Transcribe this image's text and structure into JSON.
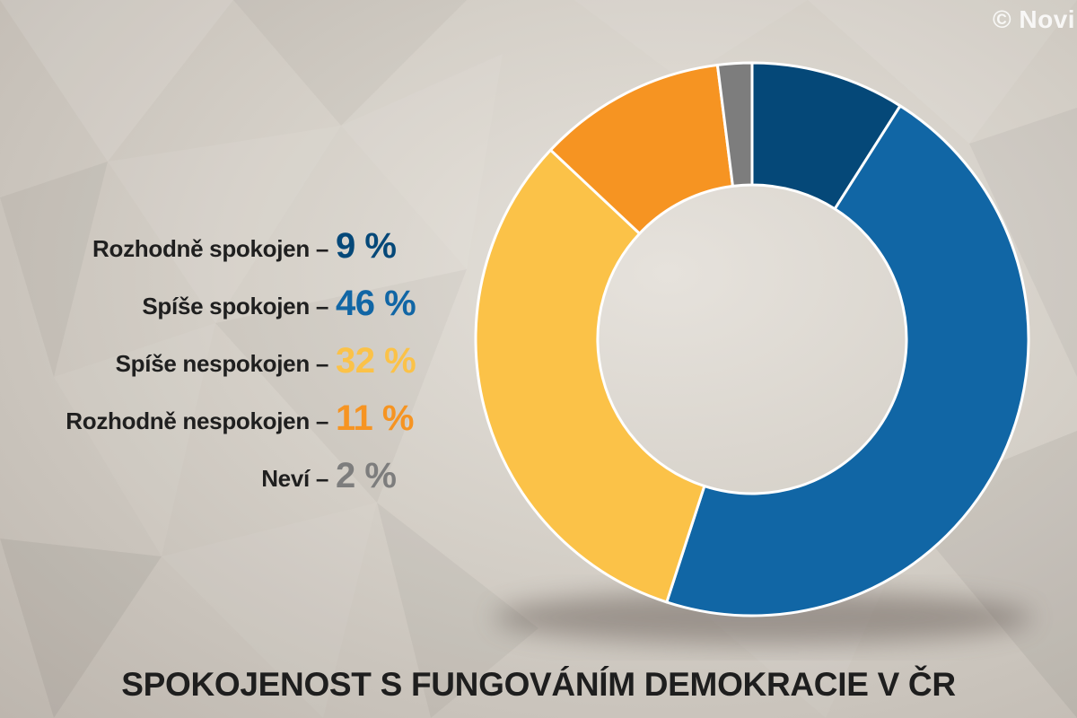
{
  "copyright": "© Novi",
  "chart_data": {
    "type": "pie",
    "title": "SPOKOJENOST S FUNGOVÁNÍM DEMOKRACIE V ČR",
    "slices": [
      {
        "label": "Rozhodně spokojen",
        "value": 9,
        "value_text": "9 %",
        "color": "#054878"
      },
      {
        "label": "Spíše spokojen",
        "value": 46,
        "value_text": "46 %",
        "color": "#1166a5"
      },
      {
        "label": "Spíše nespokojen",
        "value": 32,
        "value_text": "32 %",
        "color": "#fbc248"
      },
      {
        "label": "Rozhodně nespokojen",
        "value": 11,
        "value_text": "11 %",
        "color": "#f69422"
      },
      {
        "label": "Neví",
        "value": 2,
        "value_text": "2 %",
        "color": "#7d7d7d"
      }
    ],
    "legend_placement": "left",
    "grid": false
  }
}
